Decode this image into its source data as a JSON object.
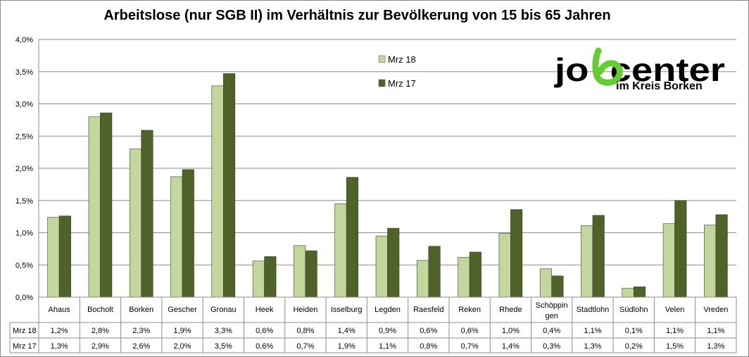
{
  "chart_data": {
    "type": "bar",
    "title": "Arbeitslose (nur SGB II) im Verhältnis zur Bevölkerung von 15 bis 65 Jahren",
    "categories": [
      "Ahaus",
      "Bocholt",
      "Borken",
      "Gescher",
      "Gronau",
      "Heek",
      "Heiden",
      "Isselburg",
      "Legden",
      "Raesfeld",
      "Reken",
      "Rhede",
      "Schöppingen",
      "Stadtlohn",
      "Südlohn",
      "Velen",
      "Vreden"
    ],
    "category_lines": [
      [
        "Ahaus"
      ],
      [
        "Bocholt"
      ],
      [
        "Borken"
      ],
      [
        "Gescher"
      ],
      [
        "Gronau"
      ],
      [
        "Heek"
      ],
      [
        "Heiden"
      ],
      [
        "Isselburg"
      ],
      [
        "Legden"
      ],
      [
        "Raesfeld"
      ],
      [
        "Reken"
      ],
      [
        "Rhede"
      ],
      [
        "Schöppin",
        "gen"
      ],
      [
        "Stadtlohn"
      ],
      [
        "Südlohn"
      ],
      [
        "Velen"
      ],
      [
        "Vreden"
      ]
    ],
    "series": [
      {
        "name": "Mrz 18",
        "color": "#c3d69b",
        "values": [
          1.24,
          2.8,
          2.3,
          1.87,
          3.28,
          0.56,
          0.8,
          1.45,
          0.95,
          0.57,
          0.62,
          0.99,
          0.44,
          1.11,
          0.14,
          1.14,
          1.12
        ],
        "labels": [
          "1,2%",
          "2,8%",
          "2,3%",
          "1,9%",
          "3,3%",
          "0,6%",
          "0,8%",
          "1,4%",
          "0,9%",
          "0,6%",
          "0,6%",
          "1,0%",
          "0,4%",
          "1,1%",
          "0,1%",
          "1,1%",
          "1,1%"
        ]
      },
      {
        "name": "Mrz 17",
        "color": "#4f6228",
        "values": [
          1.26,
          2.86,
          2.59,
          1.98,
          3.47,
          0.63,
          0.72,
          1.86,
          1.07,
          0.79,
          0.7,
          1.36,
          0.33,
          1.27,
          0.16,
          1.5,
          1.28
        ],
        "labels": [
          "1,3%",
          "2,9%",
          "2,6%",
          "2,0%",
          "3,5%",
          "0,6%",
          "0,7%",
          "1,9%",
          "1,1%",
          "0,8%",
          "0,7%",
          "1,4%",
          "0,3%",
          "1,3%",
          "0,2%",
          "1,5%",
          "1,3%"
        ]
      }
    ],
    "ylim": [
      0,
      4.0
    ],
    "yticks": [
      {
        "value": 0,
        "label": "0,0%"
      },
      {
        "value": 0.5,
        "label": "0,5%"
      },
      {
        "value": 1.0,
        "label": "1,0%"
      },
      {
        "value": 1.5,
        "label": "1,5%"
      },
      {
        "value": 2.0,
        "label": "2,0%"
      },
      {
        "value": 2.5,
        "label": "2,5%"
      },
      {
        "value": 3.0,
        "label": "3,0%"
      },
      {
        "value": 3.5,
        "label": "3,5%"
      },
      {
        "value": 4.0,
        "label": "4,0%"
      }
    ],
    "grid": true,
    "legend_position": "top-center",
    "data_table": true
  },
  "logo": {
    "text": "jobcenter",
    "subtext": "im Kreis Borken",
    "accent_color": "#66cc33"
  }
}
